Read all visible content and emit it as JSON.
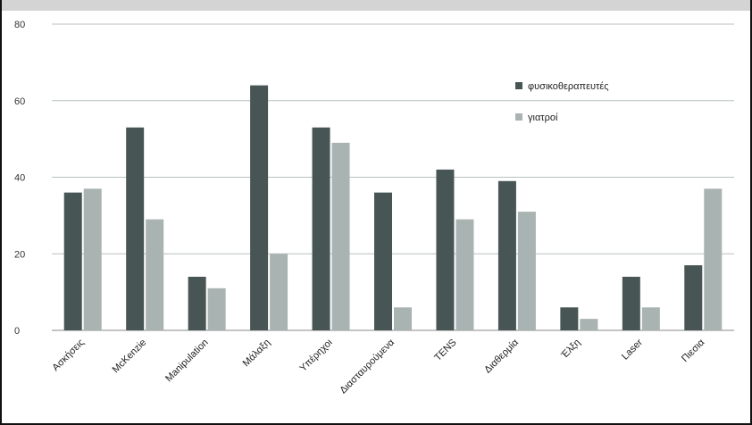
{
  "chart_data": {
    "type": "bar",
    "categories": [
      "Ασκήσεις",
      "McKenzie",
      "Manipulation",
      "Μάλαξη",
      "Υπέρηχοι",
      "Διασταυρούμενα",
      "TENS",
      "Διαθερμία",
      "Έλξη",
      "Laser",
      "Πιεσια"
    ],
    "series": [
      {
        "name": "φυσικοθεραπευτές",
        "values": [
          36,
          53,
          14,
          64,
          53,
          36,
          42,
          39,
          6,
          14,
          17
        ],
        "color": "#475654"
      },
      {
        "name": "γιατροί",
        "values": [
          37,
          29,
          11,
          20,
          49,
          6,
          29,
          31,
          3,
          6,
          37
        ],
        "color": "#a9b3b1"
      }
    ],
    "y_ticks": [
      0,
      20,
      40,
      60,
      80
    ],
    "ylim": [
      0,
      80
    ],
    "grid": true,
    "legend_position": "top-right",
    "title": "",
    "xlabel": "",
    "ylabel": ""
  }
}
